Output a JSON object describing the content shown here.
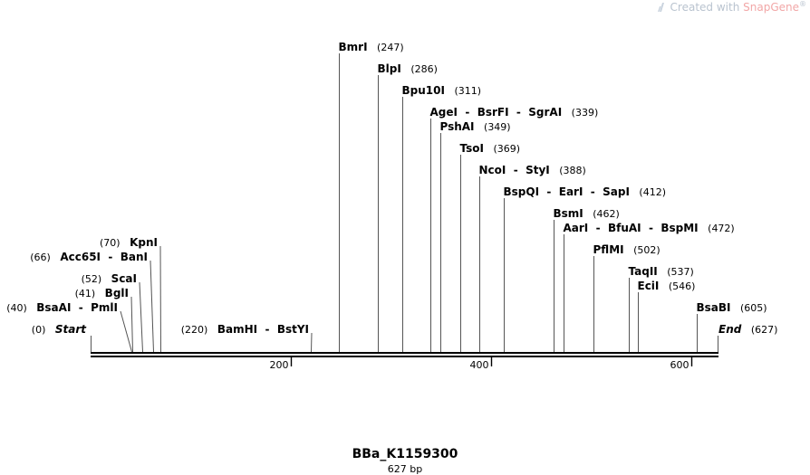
{
  "watermark": {
    "prefix": "Created with",
    "brand": "SnapGene",
    "mark": "®"
  },
  "title": "BBa_K1159300",
  "length_label": "627 bp",
  "sequence_length": 627,
  "ruler_ticks": [
    200,
    400,
    600
  ],
  "end_markers": [
    {
      "name": "Start",
      "position": "(0)",
      "pos": 0
    },
    {
      "name": "End",
      "position": "(627)",
      "pos": 627
    }
  ],
  "sites": [
    {
      "names": [
        "BsaAI",
        "PmlI"
      ],
      "position": "(40)",
      "pos": 40,
      "side": "left"
    },
    {
      "names": [
        "BglI"
      ],
      "position": "(41)",
      "pos": 41,
      "side": "left"
    },
    {
      "names": [
        "ScaI"
      ],
      "position": "(52)",
      "pos": 52,
      "side": "left"
    },
    {
      "names": [
        "Acc65I",
        "BanI"
      ],
      "position": "(66)",
      "pos": 66,
      "side": "left"
    },
    {
      "names": [
        "KpnI"
      ],
      "position": "(70)",
      "pos": 70,
      "side": "left"
    },
    {
      "names": [
        "BamHI",
        "BstYI"
      ],
      "position": "(220)",
      "pos": 220,
      "side": "left"
    },
    {
      "names": [
        "BmrI"
      ],
      "position": "(247)",
      "pos": 247,
      "side": "right"
    },
    {
      "names": [
        "BlpI"
      ],
      "position": "(286)",
      "pos": 286,
      "side": "right"
    },
    {
      "names": [
        "Bpu10I"
      ],
      "position": "(311)",
      "pos": 311,
      "side": "right"
    },
    {
      "names": [
        "AgeI",
        "BsrFI",
        "SgrAI"
      ],
      "position": "(339)",
      "pos": 339,
      "side": "right"
    },
    {
      "names": [
        "PshAI"
      ],
      "position": "(349)",
      "pos": 349,
      "side": "right"
    },
    {
      "names": [
        "TsoI"
      ],
      "position": "(369)",
      "pos": 369,
      "side": "right"
    },
    {
      "names": [
        "NcoI",
        "StyI"
      ],
      "position": "(388)",
      "pos": 388,
      "side": "right"
    },
    {
      "names": [
        "BspQI",
        "EarI",
        "SapI"
      ],
      "position": "(412)",
      "pos": 412,
      "side": "right"
    },
    {
      "names": [
        "BsmI"
      ],
      "position": "(462)",
      "pos": 462,
      "side": "right"
    },
    {
      "names": [
        "AarI",
        "BfuAI",
        "BspMI"
      ],
      "position": "(472)",
      "pos": 472,
      "side": "right"
    },
    {
      "names": [
        "PflMI"
      ],
      "position": "(502)",
      "pos": 502,
      "side": "right"
    },
    {
      "names": [
        "TaqII"
      ],
      "position": "(537)",
      "pos": 537,
      "side": "right"
    },
    {
      "names": [
        "EciI"
      ],
      "position": "(546)",
      "pos": 546,
      "side": "right"
    },
    {
      "names": [
        "BsaBI"
      ],
      "position": "(605)",
      "pos": 605,
      "side": "right"
    }
  ]
}
